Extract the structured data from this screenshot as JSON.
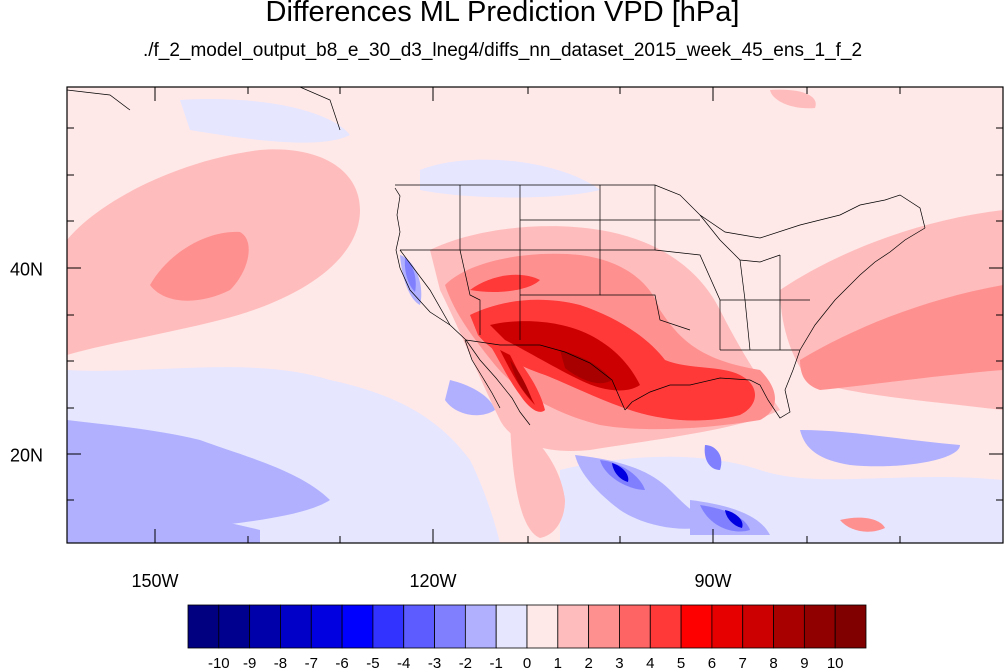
{
  "title": "Differences ML Prediction VPD [hPa]",
  "subtitle": "./f_2_model_output_b8_e_30_d3_lneg4/diffs_nn_dataset_2015_week_45_ens_1_f_2",
  "axes": {
    "lon_labels": [
      "150W",
      "120W",
      "90W"
    ],
    "lat_labels": [
      "40N",
      "20N"
    ]
  },
  "colorbar": {
    "labels": [
      "-10",
      "-9",
      "-8",
      "-7",
      "-6",
      "-5",
      "-4",
      "-3",
      "-2",
      "-1",
      "0",
      "1",
      "2",
      "3",
      "4",
      "5",
      "6",
      "7",
      "8",
      "9",
      "10"
    ],
    "colors": [
      "#000080",
      "#00008f",
      "#0000aa",
      "#0000c8",
      "#0000e0",
      "#0000ff",
      "#3333ff",
      "#5c5cff",
      "#8080ff",
      "#b0b0ff",
      "#e6e6ff",
      "#ffe8e8",
      "#ffbcbc",
      "#ff9090",
      "#ff6464",
      "#ff3838",
      "#ff0000",
      "#e60000",
      "#cc0000",
      "#a80000",
      "#900000",
      "#800000"
    ]
  },
  "map_colors": {
    "background": "#ffe8e8",
    "light_blue": "#e6e6ff",
    "mid_blue": "#b0b0ff",
    "blue": "#8080ff",
    "dark_blue": "#0000e0",
    "light_red": "#ffbcbc",
    "mid_red": "#ff9090",
    "red": "#ff3838",
    "dark_red": "#cc0000",
    "deep_red": "#a80000",
    "border_line": "#000000"
  }
}
